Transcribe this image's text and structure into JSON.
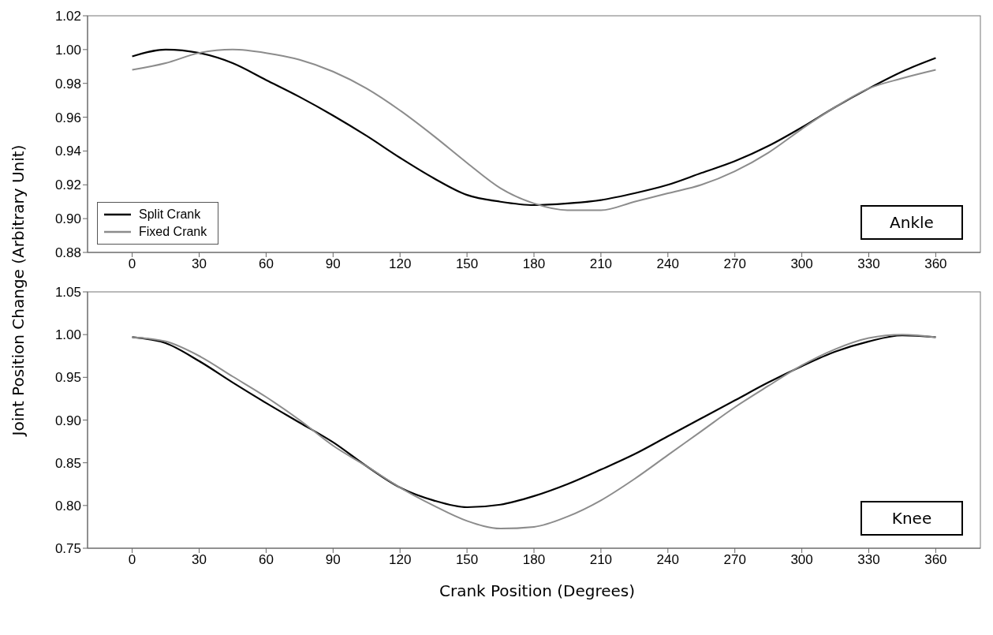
{
  "chart_data": [
    {
      "type": "line",
      "ylabel": "Joint Position Change (Arbitrary Unit)",
      "annotations": [
        "Ankle"
      ],
      "legend": "bottom left",
      "grid": false,
      "marker": "none",
      "line_style": "solid",
      "x": [
        0,
        15,
        30,
        45,
        60,
        75,
        90,
        105,
        120,
        135,
        150,
        165,
        180,
        195,
        210,
        225,
        240,
        255,
        270,
        285,
        300,
        315,
        330,
        345,
        360
      ],
      "xlim": [
        -20,
        380
      ],
      "xticks": [
        0,
        30,
        60,
        90,
        120,
        150,
        180,
        210,
        240,
        270,
        300,
        330,
        360
      ],
      "ylim": [
        0.88,
        1.02
      ],
      "yticks": [
        {
          "value": 0.88,
          "label": "0.88"
        },
        {
          "value": 0.9,
          "label": "0.90"
        },
        {
          "value": 0.92,
          "label": "0.92"
        },
        {
          "value": 0.94,
          "label": "0.94"
        },
        {
          "value": 0.96,
          "label": "0.96"
        },
        {
          "value": 0.98,
          "label": "0.98"
        },
        {
          "value": 1,
          "label": "1.00"
        },
        {
          "value": 1.02,
          "label": "1.02"
        }
      ],
      "series": [
        {
          "name": "Split Crank",
          "color": "#000000",
          "values": [
            0.996,
            1.0,
            0.998,
            0.992,
            0.982,
            0.972,
            0.961,
            0.949,
            0.936,
            0.924,
            0.914,
            0.91,
            0.908,
            0.909,
            0.911,
            0.915,
            0.92,
            0.927,
            0.934,
            0.943,
            0.954,
            0.966,
            0.977,
            0.987,
            0.995
          ]
        },
        {
          "name": "Fixed Crank",
          "color": "#8c8c8c",
          "values": [
            0.988,
            0.992,
            0.998,
            1.0,
            0.998,
            0.994,
            0.987,
            0.977,
            0.964,
            0.949,
            0.933,
            0.918,
            0.909,
            0.905,
            0.905,
            0.91,
            0.915,
            0.92,
            0.928,
            0.939,
            0.953,
            0.966,
            0.977,
            0.983,
            0.988
          ]
        }
      ]
    },
    {
      "type": "line",
      "xlabel": "Crank Position (Degrees)",
      "annotations": [
        "Knee"
      ],
      "legend": false,
      "grid": false,
      "marker": "none",
      "line_style": "solid",
      "x": [
        0,
        15,
        30,
        45,
        60,
        75,
        90,
        105,
        120,
        135,
        150,
        165,
        180,
        195,
        210,
        225,
        240,
        255,
        270,
        285,
        300,
        315,
        330,
        345,
        360
      ],
      "xlim": [
        -20,
        380
      ],
      "xticks": [
        0,
        30,
        60,
        90,
        120,
        150,
        180,
        210,
        240,
        270,
        300,
        330,
        360
      ],
      "ylim": [
        0.75,
        1.05
      ],
      "yticks": [
        {
          "value": 0.75,
          "label": "0.75"
        },
        {
          "value": 0.8,
          "label": "0.80"
        },
        {
          "value": 0.85,
          "label": "0.85"
        },
        {
          "value": 0.9,
          "label": "0.90"
        },
        {
          "value": 0.95,
          "label": "0.95"
        },
        {
          "value": 1,
          "label": "1.00"
        },
        {
          "value": 1.05,
          "label": "1.05"
        }
      ],
      "series": [
        {
          "color": "#000000",
          "values": [
            0.997,
            0.99,
            0.969,
            0.944,
            0.92,
            0.897,
            0.874,
            0.846,
            0.821,
            0.806,
            0.798,
            0.801,
            0.811,
            0.825,
            0.842,
            0.86,
            0.881,
            0.902,
            0.923,
            0.944,
            0.963,
            0.98,
            0.992,
            0.999,
            0.997
          ]
        },
        {
          "color": "#8c8c8c",
          "values": [
            0.997,
            0.992,
            0.975,
            0.951,
            0.927,
            0.9,
            0.87,
            0.846,
            0.821,
            0.8,
            0.782,
            0.773,
            0.775,
            0.787,
            0.806,
            0.831,
            0.859,
            0.887,
            0.915,
            0.94,
            0.964,
            0.983,
            0.996,
            1.0,
            0.997
          ]
        }
      ]
    }
  ]
}
